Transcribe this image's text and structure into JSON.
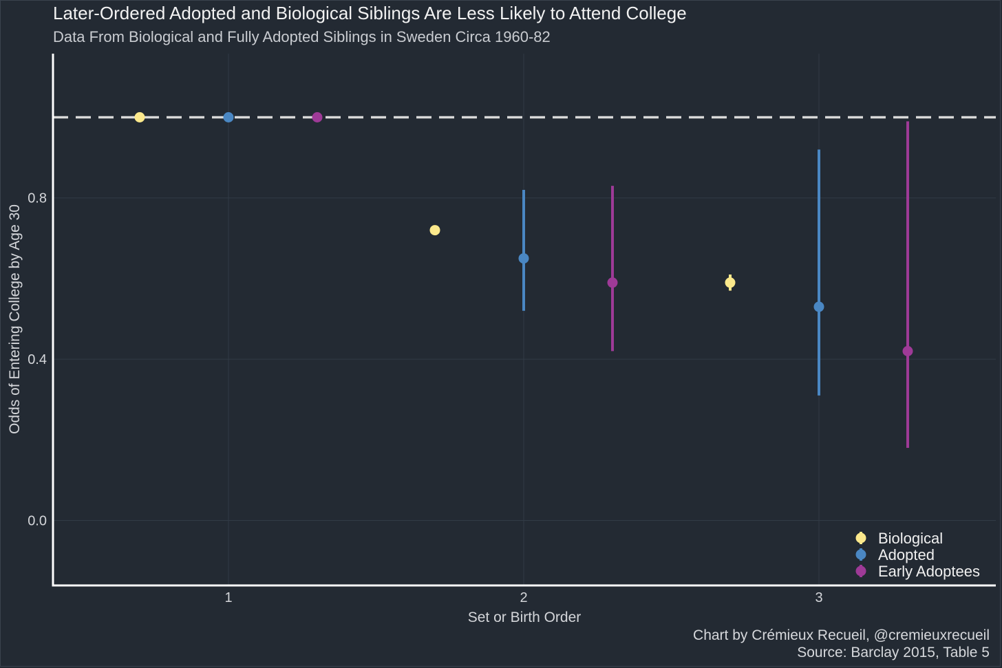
{
  "chart_data": {
    "type": "scatter",
    "title": "Later-Ordered Adopted and Biological Siblings Are Less Likely to Attend College",
    "subtitle": "Data From Biological and Fully Adopted Siblings in Sweden Circa 1960-82",
    "xlabel": "Set or Birth Order",
    "ylabel": "Odds of Entering College by Age 30",
    "categories": [
      "1",
      "2",
      "3"
    ],
    "y_ticks": [
      "0.0",
      "0.4",
      "0.8"
    ],
    "ylim": [
      -0.16,
      1.15
    ],
    "reference_line": 1.0,
    "legend_position": "bottom-right",
    "grid": true,
    "series": [
      {
        "name": "Biological",
        "color": "#fce98c",
        "points": [
          {
            "category": "1",
            "value": 1.0,
            "lower": 1.0,
            "upper": 1.0
          },
          {
            "category": "2",
            "value": 0.72,
            "lower": 0.71,
            "upper": 0.73
          },
          {
            "category": "3",
            "value": 0.59,
            "lower": 0.57,
            "upper": 0.61
          }
        ]
      },
      {
        "name": "Adopted",
        "color": "#4a87c3",
        "points": [
          {
            "category": "1",
            "value": 1.0,
            "lower": 1.0,
            "upper": 1.0
          },
          {
            "category": "2",
            "value": 0.65,
            "lower": 0.52,
            "upper": 0.82
          },
          {
            "category": "3",
            "value": 0.53,
            "lower": 0.31,
            "upper": 0.92
          }
        ]
      },
      {
        "name": "Early Adoptees",
        "color": "#9e3a97",
        "points": [
          {
            "category": "1",
            "value": 1.0,
            "lower": 1.0,
            "upper": 1.0
          },
          {
            "category": "2",
            "value": 0.59,
            "lower": 0.42,
            "upper": 0.83
          },
          {
            "category": "3",
            "value": 0.42,
            "lower": 0.18,
            "upper": 0.99
          }
        ]
      }
    ],
    "caption": [
      "Chart by Crémieux Recueil, @cremieuxrecueil",
      "Source: Barclay 2015, Table 5"
    ]
  }
}
